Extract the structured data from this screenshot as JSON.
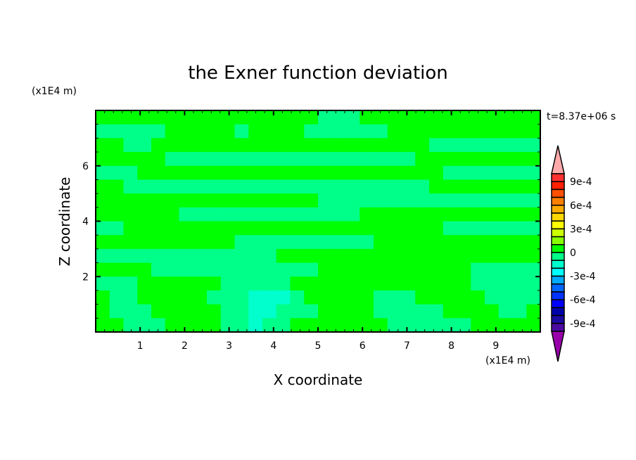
{
  "chart_data": {
    "type": "heatmap",
    "title": "the Exner function deviation",
    "xlabel": "X coordinate",
    "ylabel": "Z coordinate",
    "x_unit_label": "(x1E4 m)",
    "y_unit_label": "(x1E4 m)",
    "time_label": "t=8.37e+06 s",
    "xlim": [
      0,
      10
    ],
    "ylim": [
      0,
      8
    ],
    "x_ticks": [
      "1",
      "2",
      "3",
      "4",
      "5",
      "6",
      "7",
      "8",
      "9"
    ],
    "y_ticks": [
      "2",
      "4",
      "6"
    ],
    "colorbar": {
      "levels": [
        0.001,
        0.0009,
        0.0008,
        0.0007,
        0.0006,
        0.0005,
        0.0004,
        0.0003,
        0.0002,
        0.0001,
        0,
        -0.0001,
        -0.0002,
        -0.0003,
        -0.0004,
        -0.0005,
        -0.0006,
        -0.0007,
        -0.0008,
        -0.0009,
        -0.001
      ],
      "colors": [
        "#ff3030",
        "#ff2000",
        "#ff5000",
        "#ff7f00",
        "#ffaa00",
        "#ffd700",
        "#ffff00",
        "#ccff00",
        "#88ff00",
        "#00ff00",
        "#00ff88",
        "#00ffcc",
        "#00ffff",
        "#00aaff",
        "#0066ff",
        "#0033ff",
        "#0000ff",
        "#0000aa",
        "#1a0aa0",
        "#4b0aa0"
      ],
      "over_color": "#ffaaaa",
      "under_color": "#9900aa",
      "tick_labels": [
        "9e-4",
        "6e-4",
        "3e-4",
        "0",
        "-3e-4",
        "-6e-4",
        "-9e-4"
      ]
    },
    "grid_rows_top_to_bottom": [
      [
        5e-05,
        5e-05,
        5e-05,
        5e-05,
        5e-05,
        5e-05,
        5e-05,
        5e-05,
        5e-05,
        5e-05,
        5e-05,
        5e-05,
        5e-05,
        5e-05,
        5e-05,
        5e-05,
        -5e-05,
        -5e-05,
        -5e-05,
        5e-05,
        5e-05,
        5e-05,
        5e-05,
        5e-05,
        5e-05,
        5e-05,
        5e-05,
        5e-05,
        5e-05,
        5e-05,
        5e-05,
        5e-05
      ],
      [
        -5e-05,
        -5e-05,
        -5e-05,
        -5e-05,
        -5e-05,
        5e-05,
        5e-05,
        5e-05,
        5e-05,
        5e-05,
        -5e-05,
        5e-05,
        5e-05,
        5e-05,
        5e-05,
        -5e-05,
        -5e-05,
        -5e-05,
        -5e-05,
        -5e-05,
        -5e-05,
        5e-05,
        5e-05,
        5e-05,
        5e-05,
        5e-05,
        5e-05,
        5e-05,
        5e-05,
        5e-05,
        5e-05,
        5e-05
      ],
      [
        5e-05,
        5e-05,
        -5e-05,
        -5e-05,
        5e-05,
        5e-05,
        5e-05,
        5e-05,
        5e-05,
        5e-05,
        5e-05,
        5e-05,
        5e-05,
        5e-05,
        5e-05,
        5e-05,
        5e-05,
        5e-05,
        5e-05,
        5e-05,
        5e-05,
        5e-05,
        5e-05,
        5e-05,
        -5e-05,
        -5e-05,
        -5e-05,
        -5e-05,
        -5e-05,
        -5e-05,
        -5e-05,
        -5e-05
      ],
      [
        5e-05,
        5e-05,
        5e-05,
        5e-05,
        5e-05,
        -5e-05,
        -5e-05,
        -5e-05,
        -5e-05,
        -5e-05,
        -5e-05,
        -5e-05,
        -5e-05,
        -5e-05,
        -5e-05,
        -5e-05,
        -5e-05,
        -5e-05,
        -5e-05,
        -5e-05,
        -5e-05,
        -5e-05,
        -5e-05,
        5e-05,
        5e-05,
        5e-05,
        5e-05,
        5e-05,
        5e-05,
        5e-05,
        5e-05,
        5e-05
      ],
      [
        -5e-05,
        -5e-05,
        -5e-05,
        5e-05,
        5e-05,
        5e-05,
        5e-05,
        5e-05,
        5e-05,
        5e-05,
        5e-05,
        5e-05,
        5e-05,
        5e-05,
        5e-05,
        5e-05,
        5e-05,
        5e-05,
        5e-05,
        5e-05,
        5e-05,
        5e-05,
        5e-05,
        5e-05,
        5e-05,
        -5e-05,
        -5e-05,
        -5e-05,
        -5e-05,
        -5e-05,
        -5e-05,
        -5e-05
      ],
      [
        5e-05,
        5e-05,
        -5e-05,
        -5e-05,
        -5e-05,
        -5e-05,
        -5e-05,
        -5e-05,
        -5e-05,
        -5e-05,
        -5e-05,
        -5e-05,
        -5e-05,
        -5e-05,
        -5e-05,
        -5e-05,
        -5e-05,
        -5e-05,
        -5e-05,
        -5e-05,
        -5e-05,
        -5e-05,
        -5e-05,
        -5e-05,
        5e-05,
        5e-05,
        5e-05,
        5e-05,
        5e-05,
        5e-05,
        5e-05,
        5e-05
      ],
      [
        5e-05,
        5e-05,
        5e-05,
        5e-05,
        5e-05,
        5e-05,
        5e-05,
        5e-05,
        5e-05,
        5e-05,
        5e-05,
        5e-05,
        5e-05,
        5e-05,
        5e-05,
        5e-05,
        -5e-05,
        -5e-05,
        -5e-05,
        -5e-05,
        -5e-05,
        -5e-05,
        -5e-05,
        -5e-05,
        -5e-05,
        -5e-05,
        -5e-05,
        -5e-05,
        -5e-05,
        -5e-05,
        -5e-05,
        -5e-05
      ],
      [
        5e-05,
        5e-05,
        5e-05,
        5e-05,
        5e-05,
        5e-05,
        -5e-05,
        -5e-05,
        -5e-05,
        -5e-05,
        -5e-05,
        -5e-05,
        -5e-05,
        -5e-05,
        -5e-05,
        -5e-05,
        -5e-05,
        -5e-05,
        -5e-05,
        5e-05,
        5e-05,
        5e-05,
        5e-05,
        5e-05,
        5e-05,
        5e-05,
        5e-05,
        5e-05,
        5e-05,
        5e-05,
        5e-05,
        5e-05
      ],
      [
        -5e-05,
        -5e-05,
        5e-05,
        5e-05,
        5e-05,
        5e-05,
        5e-05,
        5e-05,
        5e-05,
        5e-05,
        5e-05,
        5e-05,
        5e-05,
        5e-05,
        5e-05,
        5e-05,
        5e-05,
        5e-05,
        5e-05,
        5e-05,
        5e-05,
        5e-05,
        5e-05,
        5e-05,
        5e-05,
        -5e-05,
        -5e-05,
        -5e-05,
        -5e-05,
        -5e-05,
        -5e-05,
        -5e-05
      ],
      [
        5e-05,
        5e-05,
        5e-05,
        5e-05,
        5e-05,
        5e-05,
        5e-05,
        5e-05,
        5e-05,
        5e-05,
        -5e-05,
        -5e-05,
        -5e-05,
        -5e-05,
        -5e-05,
        -5e-05,
        -5e-05,
        -5e-05,
        -5e-05,
        -5e-05,
        5e-05,
        5e-05,
        5e-05,
        5e-05,
        5e-05,
        5e-05,
        5e-05,
        5e-05,
        5e-05,
        5e-05,
        5e-05,
        5e-05
      ],
      [
        -5e-05,
        -5e-05,
        -5e-05,
        -5e-05,
        -5e-05,
        -5e-05,
        -5e-05,
        -5e-05,
        -5e-05,
        -5e-05,
        -5e-05,
        -5e-05,
        -5e-05,
        5e-05,
        5e-05,
        5e-05,
        5e-05,
        5e-05,
        5e-05,
        5e-05,
        5e-05,
        5e-05,
        5e-05,
        5e-05,
        5e-05,
        5e-05,
        5e-05,
        5e-05,
        5e-05,
        5e-05,
        5e-05,
        5e-05
      ],
      [
        5e-05,
        5e-05,
        5e-05,
        5e-05,
        -5e-05,
        -5e-05,
        -5e-05,
        -5e-05,
        -5e-05,
        -5e-05,
        -5e-05,
        -5e-05,
        -5e-05,
        -5e-05,
        -5e-05,
        -5e-05,
        5e-05,
        5e-05,
        5e-05,
        5e-05,
        5e-05,
        5e-05,
        5e-05,
        5e-05,
        5e-05,
        5e-05,
        5e-05,
        -5e-05,
        -5e-05,
        -5e-05,
        -5e-05,
        -5e-05
      ],
      [
        -5e-05,
        -5e-05,
        -5e-05,
        5e-05,
        5e-05,
        5e-05,
        5e-05,
        5e-05,
        5e-05,
        -5e-05,
        -5e-05,
        -5e-05,
        -5e-05,
        -5e-05,
        5e-05,
        5e-05,
        5e-05,
        5e-05,
        5e-05,
        5e-05,
        5e-05,
        5e-05,
        5e-05,
        5e-05,
        5e-05,
        5e-05,
        5e-05,
        -5e-05,
        -5e-05,
        -5e-05,
        -5e-05,
        -5e-05
      ],
      [
        5e-05,
        -5e-05,
        -5e-05,
        5e-05,
        5e-05,
        5e-05,
        5e-05,
        5e-05,
        -5e-05,
        -5e-05,
        -5e-05,
        -0.00015,
        -0.00015,
        -0.00015,
        -5e-05,
        5e-05,
        5e-05,
        5e-05,
        5e-05,
        5e-05,
        -5e-05,
        -5e-05,
        -5e-05,
        5e-05,
        5e-05,
        5e-05,
        5e-05,
        5e-05,
        -5e-05,
        -5e-05,
        -5e-05,
        -5e-05
      ],
      [
        5e-05,
        -5e-05,
        -5e-05,
        -5e-05,
        5e-05,
        5e-05,
        5e-05,
        5e-05,
        5e-05,
        -5e-05,
        -5e-05,
        -0.00015,
        -0.00015,
        -5e-05,
        -5e-05,
        -5e-05,
        5e-05,
        5e-05,
        5e-05,
        5e-05,
        -5e-05,
        -5e-05,
        -5e-05,
        -5e-05,
        -5e-05,
        5e-05,
        5e-05,
        5e-05,
        5e-05,
        -5e-05,
        -5e-05,
        5e-05
      ],
      [
        5e-05,
        5e-05,
        -5e-05,
        -5e-05,
        -5e-05,
        5e-05,
        5e-05,
        5e-05,
        5e-05,
        -5e-05,
        -5e-05,
        -0.00015,
        -5e-05,
        -5e-05,
        5e-05,
        5e-05,
        5e-05,
        5e-05,
        5e-05,
        5e-05,
        5e-05,
        -5e-05,
        -5e-05,
        -5e-05,
        -5e-05,
        -5e-05,
        -5e-05,
        5e-05,
        5e-05,
        5e-05,
        5e-05,
        5e-05
      ]
    ]
  }
}
